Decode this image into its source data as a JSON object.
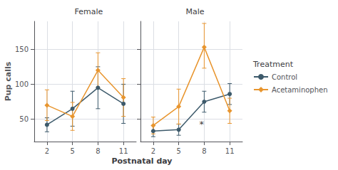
{
  "chart_data": [
    {
      "type": "line",
      "title": "Female",
      "ylabel": "Pup calls",
      "xlabel": "Postnatal day",
      "legend_title": "Treatment",
      "legend": "right",
      "x": [
        2,
        5,
        8,
        11
      ],
      "xlim": [
        0.5,
        12.5
      ],
      "xticks": [
        2,
        5,
        8,
        11
      ],
      "ylim": [
        18,
        190
      ],
      "yticks": [
        50,
        100,
        150
      ],
      "grid": true,
      "series": [
        {
          "name": "Control",
          "color": "#3d5a6b",
          "marker": "circle",
          "values": [
            42,
            65,
            95,
            72
          ],
          "yerr_lo": [
            10,
            25,
            30,
            28
          ],
          "yerr_hi": [
            10,
            25,
            30,
            28
          ]
        },
        {
          "name": "Acetaminophen",
          "color": "#e8952e",
          "marker": "diamond",
          "values": [
            70,
            54,
            120,
            81
          ],
          "yerr_lo": [
            22,
            20,
            25,
            27
          ],
          "yerr_hi": [
            22,
            20,
            25,
            27
          ]
        }
      ]
    },
    {
      "type": "line",
      "title": "Male",
      "tick_labels": "x",
      "x": [
        2,
        5,
        8,
        11
      ],
      "xlim": [
        0.5,
        12.5
      ],
      "xticks": [
        2,
        5,
        8,
        11
      ],
      "ylim": [
        18,
        190
      ],
      "yticks": [
        50,
        100,
        150
      ],
      "grid": true,
      "series": [
        {
          "name": "Control",
          "color": "#3d5a6b",
          "marker": "circle",
          "values": [
            33,
            35,
            75,
            86
          ],
          "yerr_lo": [
            8,
            8,
            15,
            15
          ],
          "yerr_hi": [
            8,
            8,
            15,
            15
          ]
        },
        {
          "name": "Acetaminophen",
          "color": "#e8952e",
          "marker": "diamond",
          "values": [
            41,
            68,
            153,
            62
          ],
          "yerr_lo": [
            12,
            25,
            30,
            18
          ],
          "yerr_hi": [
            12,
            25,
            34,
            18
          ]
        }
      ],
      "annotations": [
        {
          "x": 7.7,
          "y": 43,
          "text": "*"
        }
      ]
    }
  ]
}
